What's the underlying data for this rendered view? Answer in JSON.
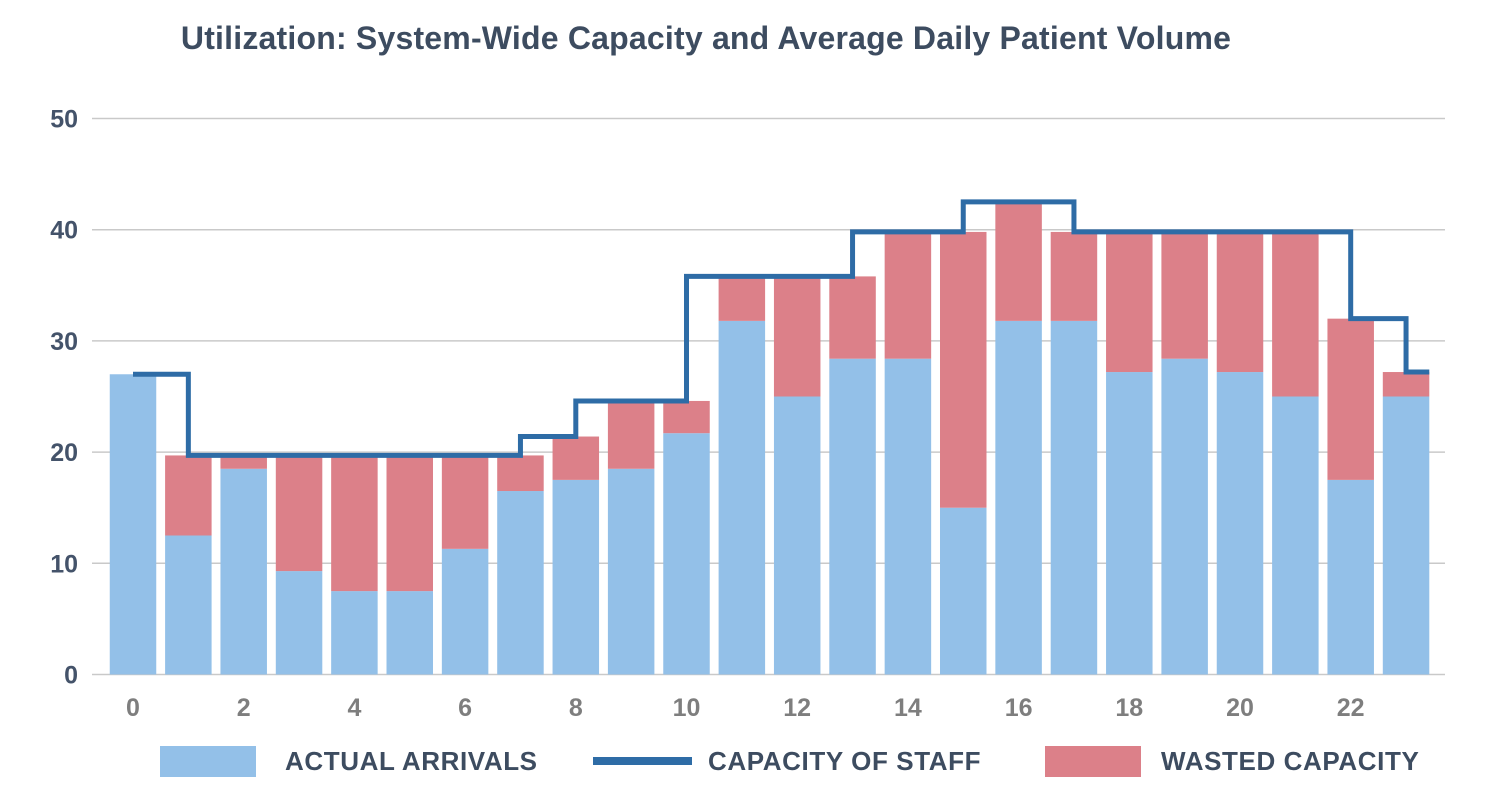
{
  "title": "Utilization: System-Wide Capacity and Average Daily Patient Volume",
  "colors": {
    "bar_actual": "#93C0E8",
    "bar_wasted": "#DC8089",
    "capacity_line": "#2E6CA6",
    "title_text": "#3D4C60",
    "y_axis_labels": "#44536A",
    "x_axis_labels": "#7E7E7E",
    "gridline": "#C9C9C9"
  },
  "legend": [
    {
      "label": "ACTUAL ARRIVALS",
      "swatch": "box",
      "color": "#93C0E8"
    },
    {
      "label": "CAPACITY OF STAFF",
      "swatch": "line",
      "color": "#2E6CA6"
    },
    {
      "label": "WASTED CAPACITY",
      "swatch": "box",
      "color": "#DC8089"
    }
  ],
  "chart_data": {
    "type": "bar",
    "title": "Utilization: System-Wide Capacity and Average Daily Patient Volume",
    "xlabel": "",
    "ylabel": "",
    "x": [
      0,
      1,
      2,
      3,
      4,
      5,
      6,
      7,
      8,
      9,
      10,
      11,
      12,
      13,
      14,
      15,
      16,
      17,
      18,
      19,
      20,
      21,
      22,
      23
    ],
    "xticks": [
      0,
      2,
      4,
      6,
      8,
      10,
      12,
      14,
      16,
      18,
      20,
      22
    ],
    "ylim": [
      0,
      50
    ],
    "ytick_interval": 10,
    "grid": true,
    "legend_position": "bottom",
    "series": [
      {
        "name": "Actual Arrivals",
        "render": "stacked-bar-base",
        "color": "#93C0E8",
        "values": [
          27,
          12.5,
          18.5,
          9.3,
          7.5,
          7.5,
          11.3,
          16.5,
          17.5,
          18.5,
          21.7,
          31.8,
          25,
          28.4,
          28.4,
          15,
          31.8,
          31.8,
          27.2,
          28.4,
          27.2,
          25,
          17.5,
          25
        ]
      },
      {
        "name": "Wasted Capacity",
        "render": "stacked-bar-top",
        "color": "#DC8089",
        "values": [
          0,
          7.2,
          1.2,
          10.4,
          12.2,
          12.2,
          8.4,
          3.2,
          3.9,
          6.1,
          2.9,
          4,
          10.8,
          7.4,
          11.4,
          24.8,
          10.7,
          8,
          12.6,
          11.4,
          12.6,
          14.8,
          14.5,
          2.2
        ]
      },
      {
        "name": "Capacity of Staff",
        "render": "step-line",
        "color": "#2E6CA6",
        "values": [
          27,
          19.7,
          19.7,
          19.7,
          19.7,
          19.7,
          19.7,
          21.4,
          24.6,
          24.6,
          35.8,
          35.8,
          35.8,
          39.8,
          39.8,
          42.5,
          42.5,
          39.8,
          39.8,
          39.8,
          39.8,
          39.8,
          32,
          27.2
        ]
      }
    ]
  }
}
